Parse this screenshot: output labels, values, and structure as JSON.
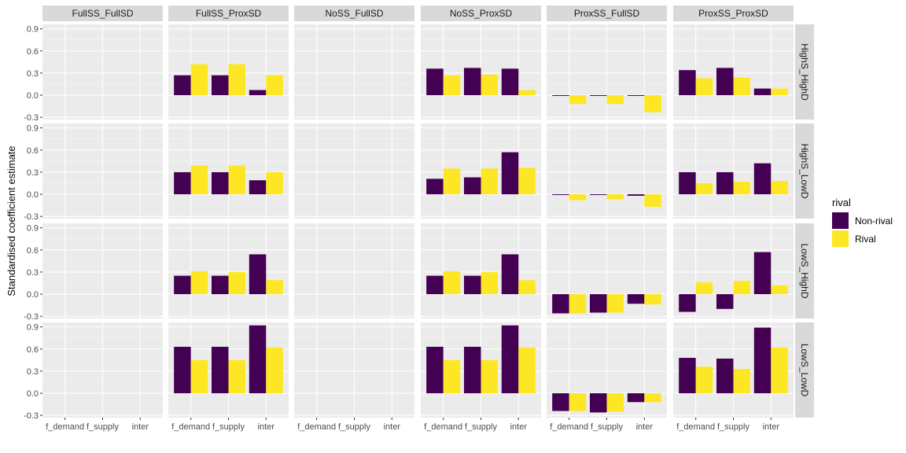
{
  "chart_data": {
    "type": "bar",
    "facet_columns": [
      "FullSS_FullSD",
      "FullSS_ProxSD",
      "NoSS_FullSD",
      "NoSS_ProxSD",
      "ProxSS_FullSD",
      "ProxSS_ProxSD"
    ],
    "facet_rows": [
      "HighS_HighD",
      "HighS_LowD",
      "LowS_HighD",
      "LowS_LowD"
    ],
    "categories": [
      "f_demand",
      "f_supply",
      "inter"
    ],
    "x_tick_labels": [
      "f_demand",
      "f_supply",
      "inter"
    ],
    "ylabel": "Standardised coefficient estimate",
    "xlabel": "",
    "yticks": [
      -0.3,
      0.0,
      0.3,
      0.6,
      0.9
    ],
    "ytick_labels": [
      "-0.3",
      "0.0",
      "0.3",
      "0.6",
      "0.9"
    ],
    "ylim": [
      -0.33,
      0.96
    ],
    "legend": {
      "title": "rival",
      "position": "right",
      "entries": [
        {
          "name": "Non-rival",
          "color": "#440154"
        },
        {
          "name": "Rival",
          "color": "#FDE725"
        }
      ]
    },
    "panels": {
      "FullSS_FullSD": {
        "HighS_HighD": null,
        "HighS_LowD": null,
        "LowS_HighD": null,
        "LowS_LowD": null
      },
      "FullSS_ProxSD": {
        "HighS_HighD": {
          "Non-rival": [
            0.27,
            0.27,
            0.07
          ],
          "Rival": [
            0.42,
            0.42,
            0.27
          ]
        },
        "HighS_LowD": {
          "Non-rival": [
            0.3,
            0.3,
            0.19
          ],
          "Rival": [
            0.39,
            0.39,
            0.3
          ]
        },
        "LowS_HighD": {
          "Non-rival": [
            0.25,
            0.25,
            0.54
          ],
          "Rival": [
            0.31,
            0.3,
            0.19
          ]
        },
        "LowS_LowD": {
          "Non-rival": [
            0.63,
            0.63,
            0.92
          ],
          "Rival": [
            0.45,
            0.45,
            0.62
          ]
        }
      },
      "NoSS_FullSD": {
        "HighS_HighD": null,
        "HighS_LowD": null,
        "LowS_HighD": null,
        "LowS_LowD": null
      },
      "NoSS_ProxSD": {
        "HighS_HighD": {
          "Non-rival": [
            0.36,
            0.37,
            0.36
          ],
          "Rival": [
            0.27,
            0.28,
            0.07
          ]
        },
        "HighS_LowD": {
          "Non-rival": [
            0.21,
            0.23,
            0.57
          ],
          "Rival": [
            0.35,
            0.35,
            0.36
          ]
        },
        "LowS_HighD": {
          "Non-rival": [
            0.25,
            0.25,
            0.54
          ],
          "Rival": [
            0.31,
            0.3,
            0.19
          ]
        },
        "LowS_LowD": {
          "Non-rival": [
            0.63,
            0.63,
            0.92
          ],
          "Rival": [
            0.45,
            0.45,
            0.62
          ]
        }
      },
      "ProxSS_FullSD": {
        "HighS_HighD": {
          "Non-rival": [
            -0.01,
            -0.01,
            -0.01
          ],
          "Rival": [
            -0.12,
            -0.12,
            -0.23
          ]
        },
        "HighS_LowD": {
          "Non-rival": [
            -0.01,
            -0.01,
            -0.02
          ],
          "Rival": [
            -0.08,
            -0.07,
            -0.17
          ]
        },
        "LowS_HighD": {
          "Non-rival": [
            -0.26,
            -0.25,
            -0.13
          ],
          "Rival": [
            -0.26,
            -0.25,
            -0.14
          ]
        },
        "LowS_LowD": {
          "Non-rival": [
            -0.24,
            -0.26,
            -0.12
          ],
          "Rival": [
            -0.24,
            -0.25,
            -0.12
          ]
        }
      },
      "ProxSS_ProxSD": {
        "HighS_HighD": {
          "Non-rival": [
            0.34,
            0.37,
            0.09
          ],
          "Rival": [
            0.23,
            0.24,
            0.09
          ]
        },
        "HighS_LowD": {
          "Non-rival": [
            0.3,
            0.3,
            0.42
          ],
          "Rival": [
            0.15,
            0.17,
            0.18
          ]
        },
        "LowS_HighD": {
          "Non-rival": [
            -0.24,
            -0.2,
            0.57
          ],
          "Rival": [
            0.16,
            0.18,
            0.12
          ]
        },
        "LowS_LowD": {
          "Non-rival": [
            0.48,
            0.47,
            0.89
          ],
          "Rival": [
            0.36,
            0.33,
            0.62
          ]
        }
      }
    }
  }
}
